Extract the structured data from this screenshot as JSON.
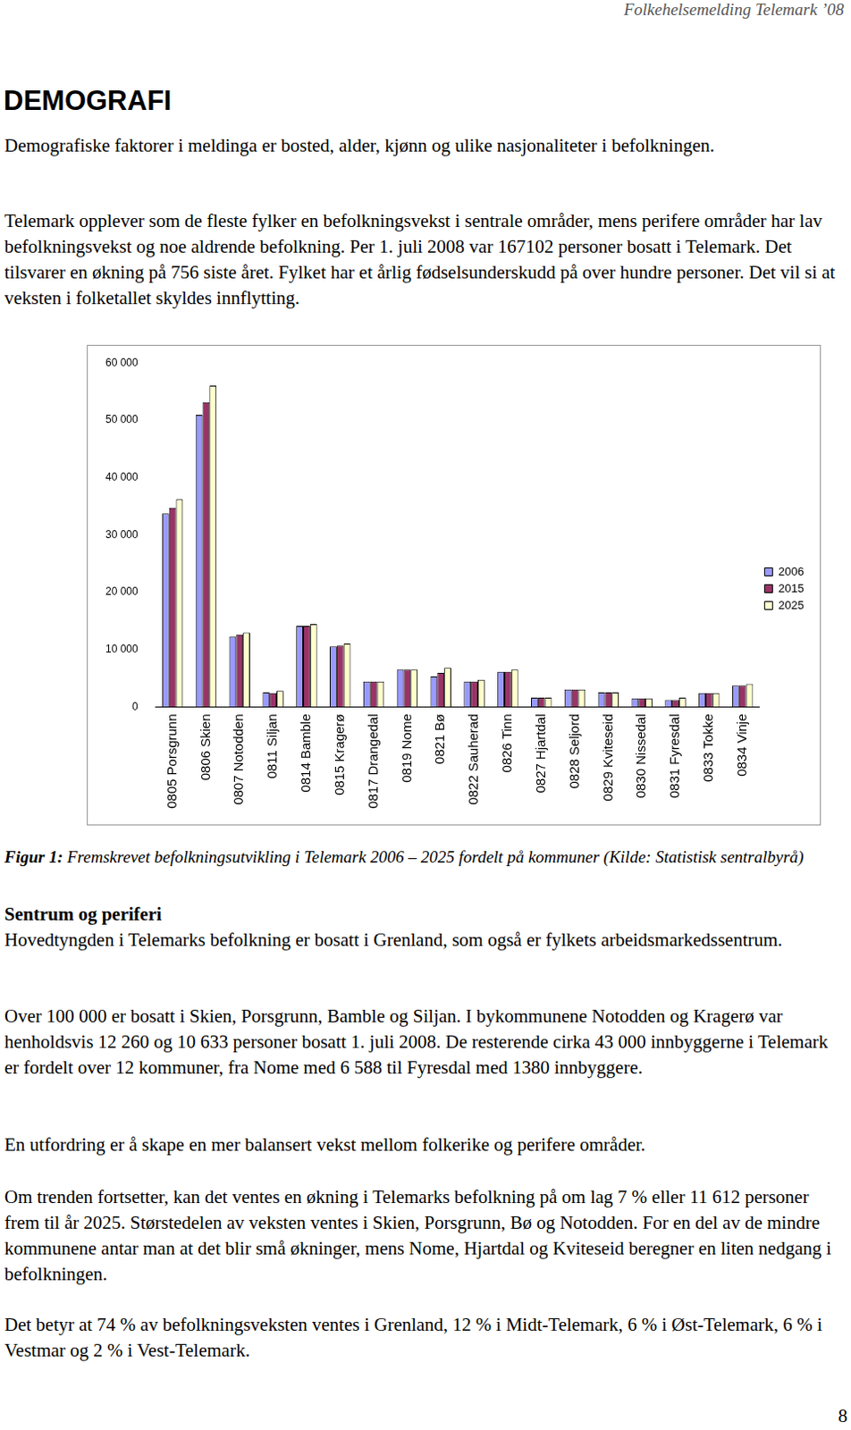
{
  "header": "Folkehelsemelding Telemark ’08",
  "title": "DEMOGRAFI",
  "intro": [
    "Demografiske faktorer i meldinga er bosted, alder, kjønn og ulike nasjonaliteter i befolkningen.",
    "Telemark opplever som de fleste fylker en befolkningsvekst i sentrale områder, mens perifere områder har lav befolkningsvekst og noe aldrende befolkning. Per 1. juli 2008 var 167102 personer bosatt i Telemark. Det tilsvarer en økning på 756 siste året. Fylket har et årlig fødselsunderskudd på over hundre personer. Det vil si at veksten i folketallet skyldes innflytting."
  ],
  "chart_data": {
    "type": "bar",
    "categories": [
      "0805 Porsgrunn",
      "0806 Skien",
      "0807 Notodden",
      "0811 Siljan",
      "0814 Bamble",
      "0815 Kragerø",
      "0817 Drangedal",
      "0819 Nome",
      "0821 Bø",
      "0822 Sauherad",
      "0826 Tinn",
      "0827 Hjartdal",
      "0828 Seljord",
      "0829 Kviteseid",
      "0830 Nissedal",
      "0831 Fyresdal",
      "0833 Tokke",
      "0834 Vinje"
    ],
    "series": [
      {
        "name": "2006",
        "color": "#9999ff",
        "values": [
          33700,
          50900,
          12200,
          2500,
          14100,
          10500,
          4400,
          6500,
          5300,
          4400,
          6100,
          1600,
          3000,
          2500,
          1450,
          1200,
          2400,
          3700
        ]
      },
      {
        "name": "2015",
        "color": "#993366",
        "values": [
          34700,
          53100,
          12600,
          2400,
          14100,
          10650,
          4400,
          6500,
          5900,
          4400,
          6100,
          1600,
          3000,
          2500,
          1450,
          1200,
          2400,
          3700
        ]
      },
      {
        "name": "2025",
        "color": "#ffffcc",
        "values": [
          36200,
          56000,
          12950,
          2800,
          14400,
          11000,
          4400,
          6500,
          6800,
          4700,
          6500,
          1600,
          3000,
          2500,
          1450,
          1600,
          2400,
          4000
        ]
      }
    ],
    "ylim": [
      0,
      60000
    ],
    "yticks": [
      0,
      {
        "value": 10000,
        "label": "10 000"
      },
      {
        "value": 20000,
        "label": "20 000"
      },
      {
        "value": 30000,
        "label": "30 000"
      },
      {
        "value": 40000,
        "label": "40 000"
      },
      {
        "value": 50000,
        "label": "50 000"
      },
      {
        "value": 60000,
        "label": "60 000"
      }
    ],
    "grid": false,
    "legend": "right"
  },
  "caption": {
    "label": "Figur 1:",
    "text": "Fremskrevet befolkningsutvikling i Telemark 2006 – 2025 fordelt på kommuner (Kilde: Statistisk sentralbyrå)"
  },
  "section": {
    "heading": "Sentrum og periferi",
    "paragraphs": [
      "Hovedtyngden i Telemarks befolkning er bosatt i Grenland, som også er fylkets arbeidsmarkedssentrum.",
      "Over 100 000 er bosatt i Skien, Porsgrunn, Bamble og Siljan. I bykommunene Notodden og Kragerø var henholdsvis 12 260 og 10 633 personer bosatt 1. juli 2008. De resterende cirka 43 000 innbyggerne i Telemark er fordelt over 12 kommuner, fra Nome med 6 588 til Fyresdal med 1380 innbyggere.",
      "En utfordring er å skape en mer balansert vekst mellom folkerike og perifere områder.",
      "Om trenden fortsetter, kan det ventes en økning i Telemarks befolkning på om lag 7 % eller 11 612 personer frem til år 2025. Størstedelen av veksten ventes i Skien, Porsgrunn, Bø og Notodden. For en del av de mindre kommunene antar man at det blir små økninger, mens Nome, Hjartdal og Kviteseid beregner en liten nedgang i befolkningen.",
      "Det betyr at 74 % av befolkningsveksten ventes i Grenland, 12 % i Midt-Telemark, 6 % i Øst-Telemark, 6 % i Vestmar og 2 % i Vest-Telemark."
    ]
  },
  "page_number": "8"
}
